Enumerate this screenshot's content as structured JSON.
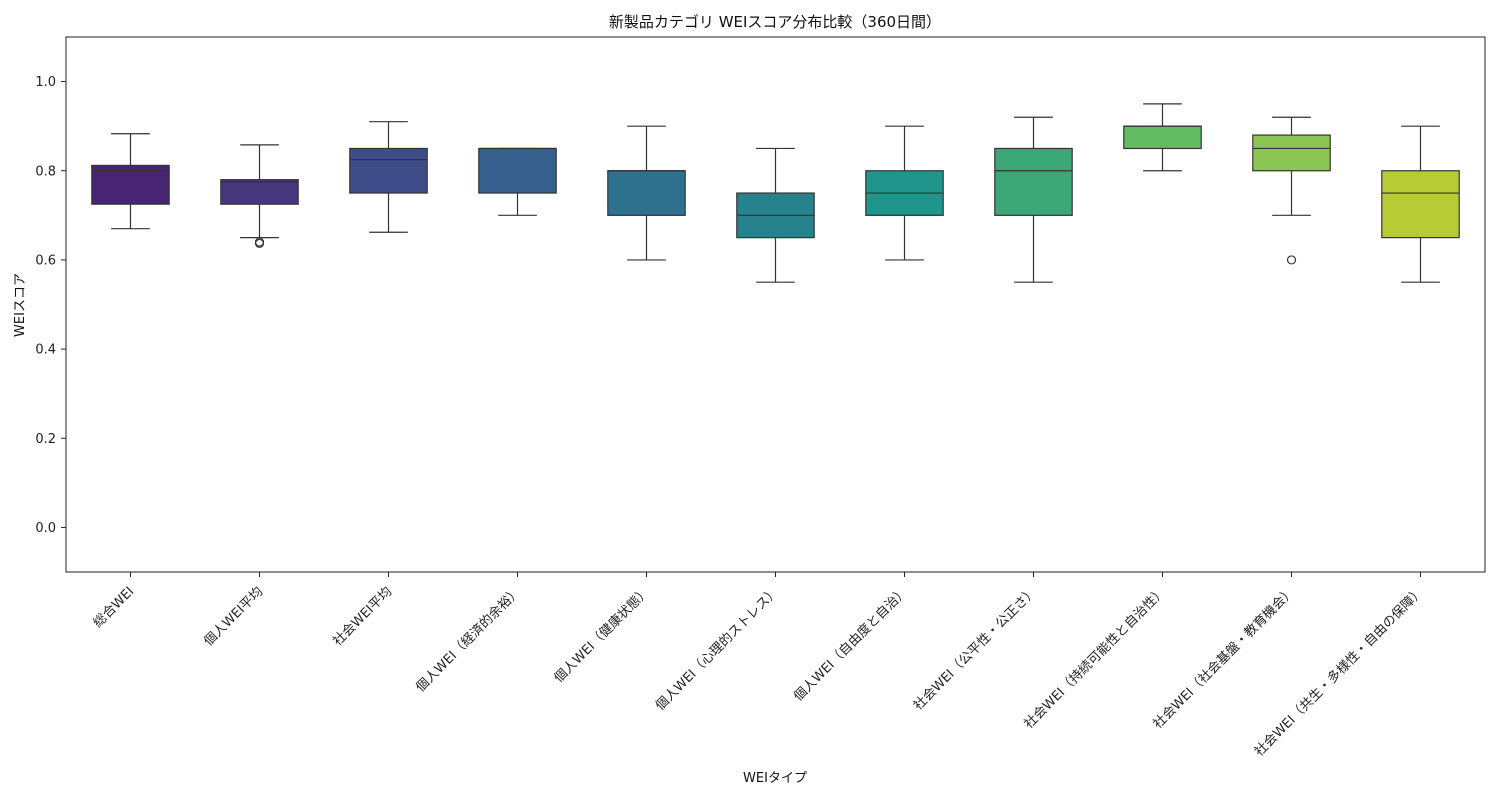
{
  "chart_data": {
    "type": "box",
    "title": "新製品カテゴリ WEIスコア分布比較（360日間）",
    "xlabel": "WEIタイプ",
    "ylabel": "WEIスコア",
    "ylim": [
      -0.1,
      1.1
    ],
    "yticks": [
      0.0,
      0.2,
      0.4,
      0.6,
      0.8,
      1.0
    ],
    "ytick_labels": [
      "0.0",
      "0.2",
      "0.4",
      "0.6",
      "0.8",
      "1.0"
    ],
    "grid": false,
    "legend": "none",
    "categories": [
      "総合WEI",
      "個人WEI平均",
      "社会WEI平均",
      "個人WEI（経済的余裕）",
      "個人WEI（健康状態）",
      "個人WEI（心理的ストレス）",
      "個人WEI（自由度と自治）",
      "社会WEI（公平性・公正さ）",
      "社会WEI（持続可能性と自治性）",
      "社会WEI（社会基盤・教育機会）",
      "社会WEI（共生・多様性・自由の保障）"
    ],
    "boxes": [
      {
        "whisker_low": 0.67,
        "q1": 0.725,
        "median": 0.8,
        "q3": 0.812,
        "whisker_high": 0.883,
        "outliers": [],
        "color": "#482475"
      },
      {
        "whisker_low": 0.65,
        "q1": 0.725,
        "median": 0.775,
        "q3": 0.78,
        "whisker_high": 0.858,
        "outliers": [
          0.637,
          0.64
        ],
        "color": "#46377f"
      },
      {
        "whisker_low": 0.662,
        "q1": 0.75,
        "median": 0.825,
        "q3": 0.85,
        "whisker_high": 0.91,
        "outliers": [],
        "color": "#3e4c8a"
      },
      {
        "whisker_low": 0.7,
        "q1": 0.75,
        "median": 0.85,
        "q3": 0.85,
        "whisker_high": 0.85,
        "outliers": [],
        "color": "#365f8d"
      },
      {
        "whisker_low": 0.6,
        "q1": 0.7,
        "median": 0.8,
        "q3": 0.8,
        "whisker_high": 0.9,
        "outliers": [],
        "color": "#2e718e"
      },
      {
        "whisker_low": 0.55,
        "q1": 0.65,
        "median": 0.7,
        "q3": 0.75,
        "whisker_high": 0.85,
        "outliers": [],
        "color": "#26838e"
      },
      {
        "whisker_low": 0.6,
        "q1": 0.7,
        "median": 0.75,
        "q3": 0.8,
        "whisker_high": 0.9,
        "outliers": [],
        "color": "#1f958b"
      },
      {
        "whisker_low": 0.55,
        "q1": 0.7,
        "median": 0.8,
        "q3": 0.85,
        "whisker_high": 0.92,
        "outliers": [],
        "color": "#3ba676"
      },
      {
        "whisker_low": 0.8,
        "q1": 0.85,
        "median": 0.9,
        "q3": 0.9,
        "whisker_high": 0.95,
        "outliers": [],
        "color": "#63bc64"
      },
      {
        "whisker_low": 0.7,
        "q1": 0.8,
        "median": 0.85,
        "q3": 0.88,
        "whisker_high": 0.92,
        "outliers": [
          0.6
        ],
        "color": "#8bc553"
      },
      {
        "whisker_low": 0.55,
        "q1": 0.65,
        "median": 0.75,
        "q3": 0.8,
        "whisker_high": 0.9,
        "outliers": [],
        "color": "#b5cc35"
      }
    ]
  }
}
